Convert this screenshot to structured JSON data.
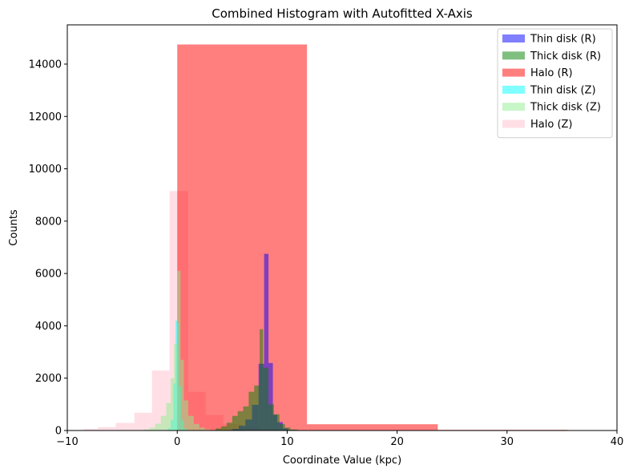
{
  "chart_data": {
    "type": "bar",
    "title": "Combined Histogram with Autofitted X-Axis",
    "xlabel": "Coordinate Value (kpc)",
    "ylabel": "Counts",
    "xlim": [
      -10,
      40
    ],
    "ylim": [
      0,
      15500
    ],
    "x_ticks": [
      -10,
      0,
      10,
      20,
      30,
      40
    ],
    "y_ticks": [
      0,
      2000,
      4000,
      6000,
      8000,
      10000,
      12000,
      14000
    ],
    "grid": false,
    "legend_position": "top-right",
    "series": [
      {
        "name": "Halo (Z)",
        "color": "#ffc0cb",
        "alpha": 0.5,
        "bins": [
          [
            -10.1,
            -8.5,
            20
          ],
          [
            -8.5,
            -7.2,
            60
          ],
          [
            -7.2,
            -5.6,
            130
          ],
          [
            -5.6,
            -3.9,
            290
          ],
          [
            -3.9,
            -2.3,
            680
          ],
          [
            -2.3,
            -0.7,
            2290
          ],
          [
            -0.7,
            1.0,
            9150
          ],
          [
            1.0,
            2.6,
            1480
          ],
          [
            2.6,
            4.2,
            600
          ],
          [
            4.2,
            5.9,
            240
          ],
          [
            5.9,
            7.5,
            120
          ],
          [
            7.5,
            9.1,
            50
          ],
          [
            9.1,
            10.8,
            15
          ]
        ]
      },
      {
        "name": "Halo (R)",
        "color": "#ff0000",
        "alpha": 0.5,
        "bins": [
          [
            0.0,
            11.8,
            14750
          ],
          [
            11.8,
            23.7,
            240
          ],
          [
            23.7,
            35.5,
            25
          ],
          [
            35.5,
            47.3,
            4
          ]
        ]
      },
      {
        "name": "Thin disk (R)",
        "color": "#0000ff",
        "alpha": 0.5,
        "bins": [
          [
            4.2,
            5.0,
            10
          ],
          [
            5.0,
            5.6,
            60
          ],
          [
            5.6,
            6.2,
            180
          ],
          [
            6.2,
            6.8,
            420
          ],
          [
            6.8,
            7.4,
            980
          ],
          [
            7.4,
            7.9,
            2550
          ],
          [
            7.9,
            8.3,
            6750
          ],
          [
            8.3,
            8.7,
            2580
          ],
          [
            8.7,
            9.1,
            600
          ],
          [
            9.1,
            9.6,
            320
          ],
          [
            9.6,
            10.1,
            80
          ],
          [
            10.1,
            10.8,
            20
          ]
        ]
      },
      {
        "name": "Thick disk (R)",
        "color": "#008000",
        "alpha": 0.5,
        "bins": [
          [
            3.5,
            4.0,
            80
          ],
          [
            4.0,
            4.5,
            160
          ],
          [
            4.5,
            5.0,
            300
          ],
          [
            5.0,
            5.5,
            560
          ],
          [
            5.5,
            6.0,
            740
          ],
          [
            6.0,
            6.5,
            920
          ],
          [
            6.5,
            7.0,
            1480
          ],
          [
            7.0,
            7.5,
            1720
          ],
          [
            7.5,
            7.8,
            3870
          ],
          [
            7.8,
            8.3,
            2400
          ],
          [
            8.3,
            8.8,
            1000
          ],
          [
            8.8,
            9.3,
            620
          ],
          [
            9.3,
            9.8,
            250
          ],
          [
            9.8,
            10.3,
            110
          ],
          [
            10.3,
            11.0,
            40
          ]
        ]
      },
      {
        "name": "Thin disk (Z)",
        "color": "#00ffff",
        "alpha": 0.5,
        "bins": [
          [
            -0.9,
            -0.6,
            80
          ],
          [
            -0.6,
            -0.35,
            400
          ],
          [
            -0.35,
            -0.15,
            1800
          ],
          [
            -0.15,
            0.0,
            4200
          ],
          [
            0.0,
            0.15,
            4100
          ],
          [
            0.15,
            0.35,
            1700
          ],
          [
            0.35,
            0.6,
            380
          ],
          [
            0.6,
            0.9,
            70
          ]
        ]
      },
      {
        "name": "Thick disk (Z)",
        "color": "#90ee90",
        "alpha": 0.5,
        "bins": [
          [
            -3.0,
            -2.5,
            40
          ],
          [
            -2.5,
            -2.0,
            110
          ],
          [
            -2.0,
            -1.5,
            260
          ],
          [
            -1.5,
            -1.0,
            560
          ],
          [
            -1.0,
            -0.6,
            1050
          ],
          [
            -0.6,
            -0.3,
            2000
          ],
          [
            -0.3,
            0.0,
            3300
          ],
          [
            0.0,
            0.3,
            6100
          ],
          [
            0.3,
            0.6,
            2700
          ],
          [
            0.6,
            1.0,
            1150
          ],
          [
            1.0,
            1.5,
            560
          ],
          [
            1.5,
            2.0,
            250
          ],
          [
            2.0,
            2.5,
            110
          ],
          [
            2.5,
            3.0,
            45
          ]
        ]
      }
    ],
    "legend": [
      {
        "label": "Thin disk (R)",
        "color": "#0000ff"
      },
      {
        "label": "Thick disk (R)",
        "color": "#008000"
      },
      {
        "label": "Halo (R)",
        "color": "#ff0000"
      },
      {
        "label": "Thin disk (Z)",
        "color": "#00ffff"
      },
      {
        "label": "Thick disk (Z)",
        "color": "#90ee90"
      },
      {
        "label": "Halo (Z)",
        "color": "#ffc0cb"
      }
    ]
  }
}
